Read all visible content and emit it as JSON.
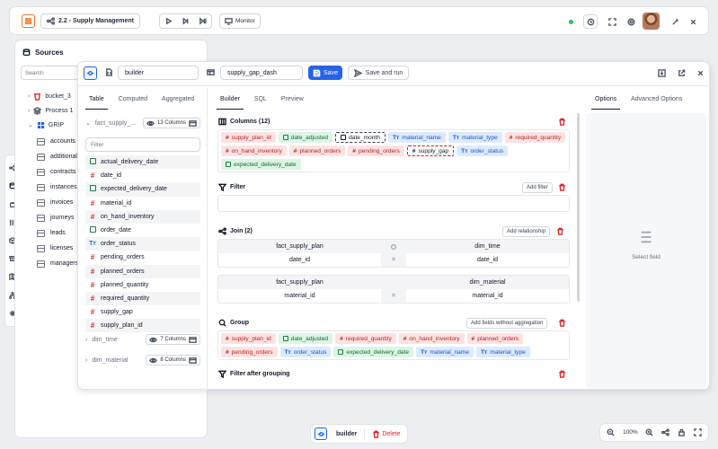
{
  "topbar": {
    "title": "2.2 - Supply Management",
    "monitor_label": "Monitor",
    "status_color": "#22c55e"
  },
  "sources": {
    "title": "Sources",
    "search_placeholder": "Search",
    "tree": [
      {
        "label": "bucket_3",
        "type": "bucket"
      },
      {
        "label": "Process 1",
        "type": "process"
      },
      {
        "label": "GRIP",
        "type": "db"
      }
    ],
    "tables": [
      "accounts",
      "additionals",
      "contracts",
      "instances",
      "invoices",
      "journeys",
      "leads",
      "licenses",
      "managers"
    ]
  },
  "editor": {
    "name_value": "builder",
    "dashboard_value": "supply_gap_dash",
    "save_label": "Save",
    "save_run_label": "Save and run",
    "left_tabs": [
      "Table",
      "Computed",
      "Aggregated"
    ],
    "left_active_tab": "Table",
    "center_tabs": [
      "Builder",
      "SQL",
      "Preview"
    ],
    "center_active_tab": "Builder",
    "right_tabs": [
      "Options",
      "Advanced Options"
    ],
    "right_active_tab": "Options",
    "tables_panel": {
      "primary": {
        "name": "fact_supply_...",
        "columns_label": "13 Columns"
      },
      "filter_placeholder": "Filter",
      "fields": [
        {
          "name": "actual_delivery_date",
          "type": "date"
        },
        {
          "name": "date_id",
          "type": "num"
        },
        {
          "name": "expected_delivery_date",
          "type": "date"
        },
        {
          "name": "material_id",
          "type": "num"
        },
        {
          "name": "on_hand_inventory",
          "type": "num"
        },
        {
          "name": "order_date",
          "type": "date"
        },
        {
          "name": "order_status",
          "type": "text"
        },
        {
          "name": "pending_orders",
          "type": "num"
        },
        {
          "name": "planned_orders",
          "type": "num"
        },
        {
          "name": "planned_quantity",
          "type": "num"
        },
        {
          "name": "required_quantity",
          "type": "num"
        },
        {
          "name": "supply_gap",
          "type": "num"
        },
        {
          "name": "supply_plan_id",
          "type": "num"
        }
      ],
      "others": [
        {
          "name": "dim_time",
          "columns_label": "7 Columns"
        },
        {
          "name": "dim_material",
          "columns_label": "8 Columns"
        }
      ]
    },
    "builder": {
      "columns_title": "Columns (12)",
      "columns": [
        {
          "name": "supply_plan_id",
          "type": "num"
        },
        {
          "name": "date_adjusted",
          "type": "date"
        },
        {
          "name": "date_month",
          "type": "sel"
        },
        {
          "name": "material_name",
          "type": "text"
        },
        {
          "name": "material_type",
          "type": "text"
        },
        {
          "name": "required_quantity",
          "type": "num"
        },
        {
          "name": "on_hand_inventory",
          "type": "num"
        },
        {
          "name": "planned_orders",
          "type": "num"
        },
        {
          "name": "pending_orders",
          "type": "num"
        },
        {
          "name": "supply_gap",
          "type": "selnum"
        },
        {
          "name": "order_status",
          "type": "text"
        },
        {
          "name": "expected_delivery_date",
          "type": "date"
        }
      ],
      "filter_title": "Filter",
      "add_filter_label": "Add filter",
      "join_title": "Join (2)",
      "add_relationship_label": "Add relationship",
      "joins": [
        {
          "left_table": "fact_supply_plan",
          "right_table": "dim_time",
          "left_key": "date_id",
          "op": "=",
          "right_key": "date_id"
        },
        {
          "left_table": "fact_supply_plan",
          "right_table": "dim_material",
          "left_key": "material_id",
          "op": "=",
          "right_key": "material_id"
        }
      ],
      "group_title": "Group",
      "add_fields_label": "Add fields without aggregation",
      "group_fields": [
        {
          "name": "supply_plan_id",
          "type": "num"
        },
        {
          "name": "date_adjusted",
          "type": "date"
        },
        {
          "name": "required_quantity",
          "type": "num"
        },
        {
          "name": "on_hand_inventory",
          "type": "num"
        },
        {
          "name": "planned_orders",
          "type": "num"
        },
        {
          "name": "pending_orders",
          "type": "num"
        },
        {
          "name": "order_status",
          "type": "text"
        },
        {
          "name": "expected_delivery_date",
          "type": "date"
        },
        {
          "name": "material_name",
          "type": "text"
        },
        {
          "name": "material_type",
          "type": "text"
        }
      ],
      "filter_after_title": "Filter after grouping"
    },
    "options_panel": {
      "empty_label": "Select field"
    }
  },
  "bottombar": {
    "node_label": "builder",
    "delete_label": "Delete"
  },
  "zoombar": {
    "zoom_label": "100%"
  }
}
